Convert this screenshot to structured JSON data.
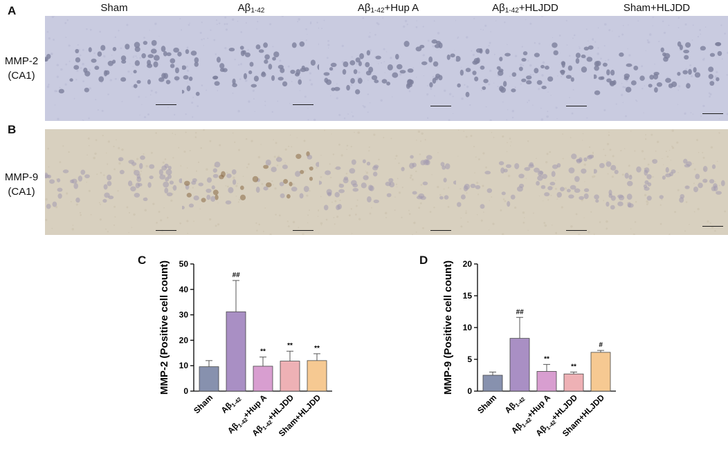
{
  "panels": {
    "a": "A",
    "b": "B",
    "c": "C",
    "d": "D"
  },
  "groups": [
    {
      "name": "Sham",
      "sub": "",
      "suffix": ""
    },
    {
      "name": "Aβ",
      "sub": "1-42",
      "suffix": ""
    },
    {
      "name": "Aβ",
      "sub": "1-42",
      "suffix": "+Hup A"
    },
    {
      "name": "Aβ",
      "sub": "1-42",
      "suffix": "+HLJDD"
    },
    {
      "name": "Sham+HLJDD",
      "sub": "",
      "suffix": ""
    }
  ],
  "row_labels": {
    "mmp2": [
      "MMP-2",
      "(CA1)"
    ],
    "mmp9": [
      "MMP-9",
      "(CA1)"
    ]
  },
  "colors": {
    "stain_mmp2_bg": "#c9cbe0",
    "stain_mmp2_cell": "#7d7f9c",
    "stain_mmp9_bg": "#d8d0bf",
    "stain_mmp9_cell": "#a49ab0",
    "stain_mmp9_dab": "#8a6a45",
    "bar_colors": [
      "#8791ae",
      "#a98fc4",
      "#d89ed0",
      "#eeb1b5",
      "#f6c992"
    ],
    "bar_edge": "#444444"
  },
  "chart_data": [
    {
      "type": "bar",
      "panel": "C",
      "categories": [
        "Sham",
        "Aβ1-42",
        "Aβ1-42+Hup A",
        "Aβ1-42+HLJDD",
        "Sham+HLJDD"
      ],
      "values": [
        9.6,
        31.2,
        9.8,
        11.8,
        12.0
      ],
      "errors": [
        2.4,
        12.3,
        3.6,
        3.9,
        2.7
      ],
      "annotations": [
        "",
        "##",
        "**",
        "**",
        "**"
      ],
      "ylabel": "MMP-2  (Positive cell count)",
      "ylim": [
        0,
        50
      ],
      "yticks": [
        0,
        10,
        20,
        30,
        40,
        50
      ]
    },
    {
      "type": "bar",
      "panel": "D",
      "categories": [
        "Sham",
        "Aβ1-42",
        "Aβ1-42+Hup A",
        "Aβ1-42+HLJDD",
        "Sham+HLJDD"
      ],
      "values": [
        2.5,
        8.3,
        3.1,
        2.7,
        6.1
      ],
      "errors": [
        0.5,
        3.3,
        1.1,
        0.3,
        0.3
      ],
      "annotations": [
        "",
        "##",
        "**",
        "**",
        "#"
      ],
      "ylabel": "MMP-9 (Positive cell count)",
      "ylim": [
        0,
        20
      ],
      "yticks": [
        0,
        5,
        10,
        15,
        20
      ]
    }
  ]
}
